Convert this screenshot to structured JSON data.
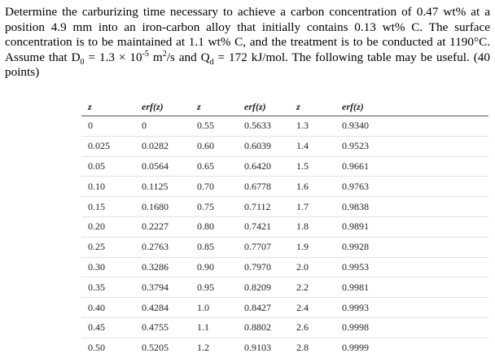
{
  "question": {
    "part1": "Determine the carburizing time necessary to achieve a carbon concentration of 0.47 wt% at a position 4.9 mm into an iron-carbon alloy that initially contains 0.13 wt% C. The surface concentration is to be maintained at 1.1 wt% C, and the treatment is to be conducted at 1190°C. Assume that D",
    "d_sub": "0",
    "part2": " = 1.3 × 10",
    "d_exp": "-5",
    "part3": " m",
    "m_exp": "2",
    "part4": "/s and Q",
    "q_sub": "d",
    "part5": " = 172 kJ/mol. The following table may be useful. (40 points)"
  },
  "table": {
    "headers": [
      "z",
      "erf(z)",
      "z",
      "erf(z)",
      "z",
      "erf(z)"
    ],
    "rows": [
      [
        "0",
        "0",
        "0.55",
        "0.5633",
        "1.3",
        "0.9340"
      ],
      [
        "0.025",
        "0.0282",
        "0.60",
        "0.6039",
        "1.4",
        "0.9523"
      ],
      [
        "0.05",
        "0.0564",
        "0.65",
        "0.6420",
        "1.5",
        "0.9661"
      ],
      [
        "0.10",
        "0.1125",
        "0.70",
        "0.6778",
        "1.6",
        "0.9763"
      ],
      [
        "0.15",
        "0.1680",
        "0.75",
        "0.7112",
        "1.7",
        "0.9838"
      ],
      [
        "0.20",
        "0.2227",
        "0.80",
        "0.7421",
        "1.8",
        "0.9891"
      ],
      [
        "0.25",
        "0.2763",
        "0.85",
        "0.7707",
        "1.9",
        "0.9928"
      ],
      [
        "0.30",
        "0.3286",
        "0.90",
        "0.7970",
        "2.0",
        "0.9953"
      ],
      [
        "0.35",
        "0.3794",
        "0.95",
        "0.8209",
        "2.2",
        "0.9981"
      ],
      [
        "0.40",
        "0.4284",
        "1.0",
        "0.8427",
        "2.4",
        "0.9993"
      ],
      [
        "0.45",
        "0.4755",
        "1.1",
        "0.8802",
        "2.6",
        "0.9998"
      ],
      [
        "0.50",
        "0.5205",
        "1.2",
        "0.9103",
        "2.8",
        "0.9999"
      ]
    ]
  }
}
